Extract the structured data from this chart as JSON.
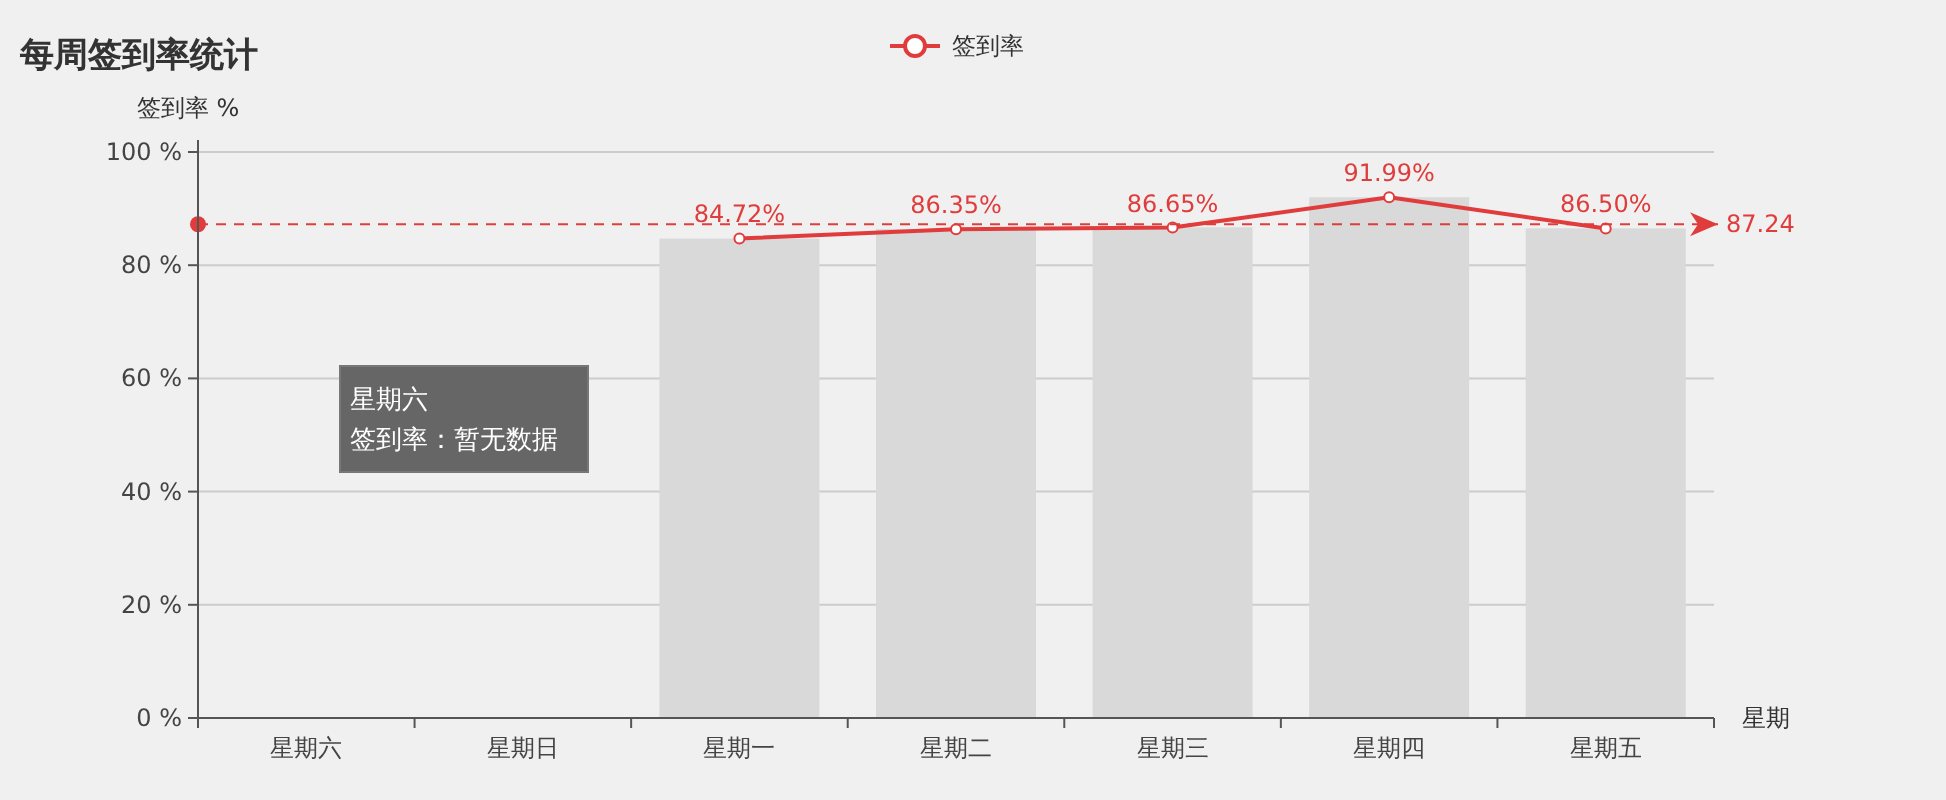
{
  "chart_data": {
    "type": "bar",
    "title": "每周签到率统计",
    "ylabel": "签到率 %",
    "xlabel": "星期",
    "categories": [
      "星期六",
      "星期日",
      "星期一",
      "星期二",
      "星期三",
      "星期四",
      "星期五"
    ],
    "series": [
      {
        "color": "#d9d9d9",
        "values": [
          null,
          null,
          84.7,
          86.4,
          86.7,
          92,
          86.5
        ]
      },
      {
        "type": "line",
        "name": "签到率",
        "color": "#e03c3c",
        "marker": "circle",
        "values": [
          null,
          null,
          84.72,
          86.35,
          86.65,
          91.99,
          86.5
        ],
        "value_labels": [
          null,
          null,
          "84.72%",
          "86.35%",
          "86.65%",
          "91.99%",
          "86.50%"
        ]
      }
    ],
    "ylim": [
      0,
      100
    ],
    "yticks": [
      {
        "value": 0,
        "label": "0 %"
      },
      {
        "value": 20,
        "label": "20 %"
      },
      {
        "value": 40,
        "label": "40 %"
      },
      {
        "value": 60,
        "label": "60 %"
      },
      {
        "value": 80,
        "label": "80 %"
      },
      {
        "value": 100,
        "label": "100 %"
      }
    ],
    "ref_lines": [
      {
        "axis": "y",
        "value": 87.24,
        "label": "87.24",
        "color": "#e03c3c",
        "line_style": "dashed"
      }
    ],
    "annotations": [
      "星期六",
      "签到率：暂无数据"
    ],
    "grid": "y",
    "legend": "top"
  }
}
